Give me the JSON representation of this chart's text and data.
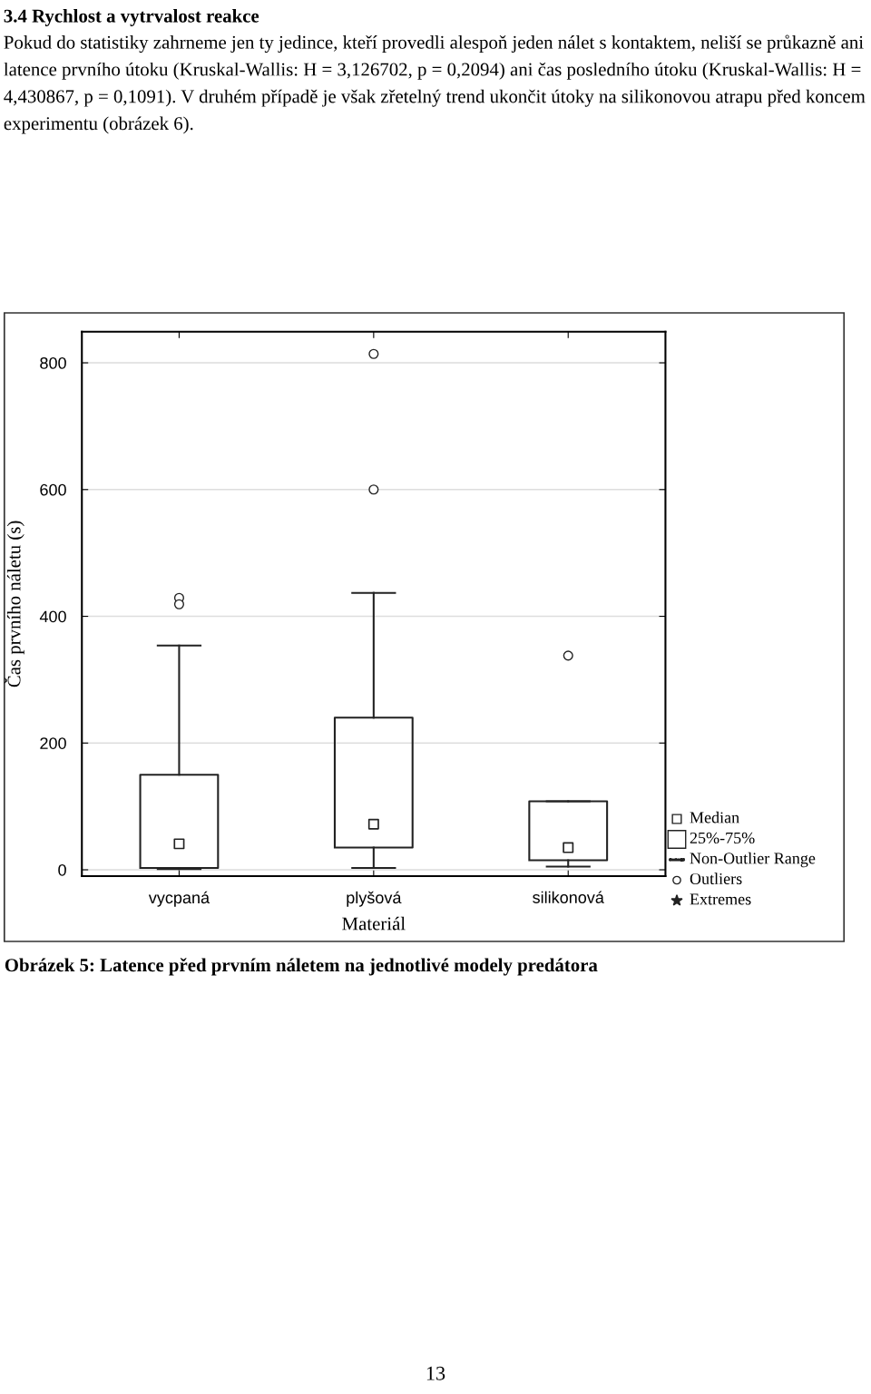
{
  "chart_data": {
    "type": "box",
    "title": "3.4 Rychlost a vytrvalost reakce",
    "subtitle": "Pokud do statistiky zahrneme jen ty jedince, kteří provedli alespoň jeden nálet s kontaktem, neliší se průkazně ani latence prvního útoku (Kruskal-Wallis: H = 3,126702, p = 0,2094) ani čas posledního útoku (Kruskal-Wallis: H = 4,430867, p = 0,1091). V druhém případě je však zřetelný trend ukončit útoky na silikonovou atrapu před koncem experimentu (obrázek 6).",
    "xlabel": "Materiál",
    "ylabel": "Čas prvního náletu (s)",
    "categories": [
      "vycpaná",
      "plyšová",
      "silikonová"
    ],
    "boxes": [
      {
        "low": 1,
        "q1": 3,
        "median": 41,
        "q3": 150,
        "high": 354,
        "outliers": [
          429,
          419
        ]
      },
      {
        "low": 3,
        "q1": 35,
        "median": 72,
        "q3": 240,
        "high": 437,
        "outliers": [
          814,
          600
        ]
      },
      {
        "low": 5,
        "q1": 15,
        "median": 35,
        "q3": 108,
        "high": 108,
        "outliers": [
          338
        ]
      }
    ],
    "ylim": [
      -10,
      849
    ],
    "yticks": [
      0,
      200,
      400,
      600,
      800
    ],
    "grid": "y",
    "annotations": [
      "Obrázek 5: Latence před prvním náletem na jednotlivé modely predátora",
      "13",
      "Median",
      "25%-75%",
      "Non-Outlier Range",
      "Outliers",
      "Extremes"
    ]
  }
}
